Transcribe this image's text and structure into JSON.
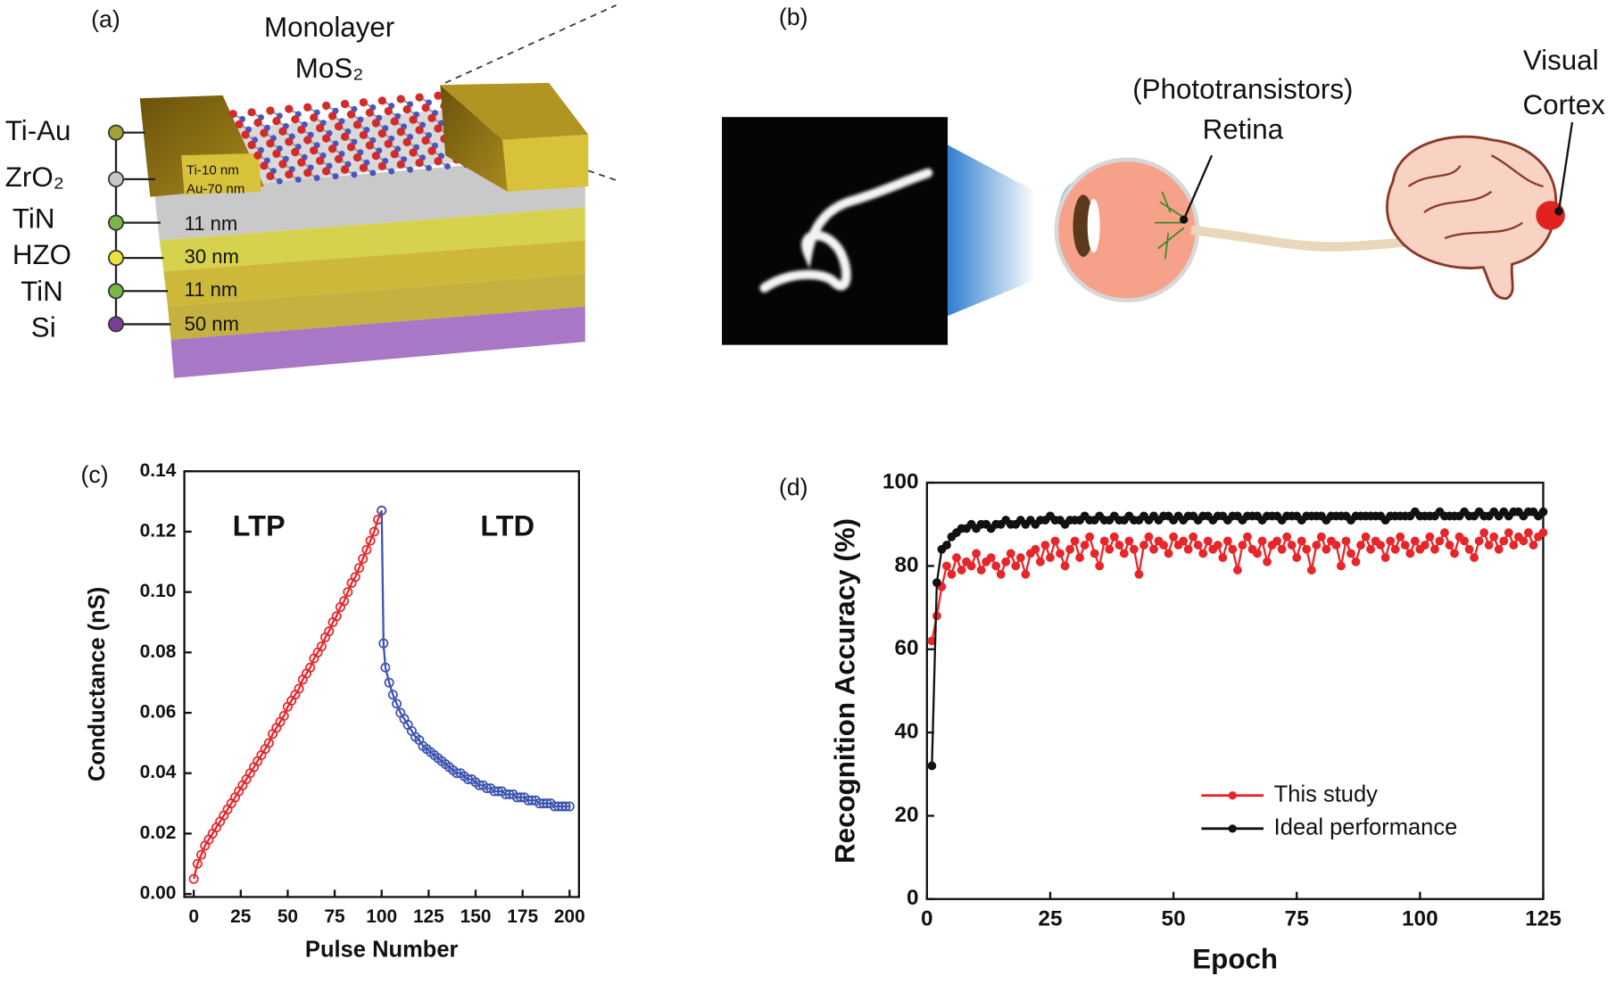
{
  "panel_a": {
    "label": "(a)",
    "title_lines": [
      "Monolayer",
      "MoS₂"
    ],
    "layers": [
      "Ti-Au",
      "ZrO₂",
      "TiN",
      "HZO",
      "TiN",
      "Si"
    ],
    "thicknesses": [
      "Ti-10 nm",
      "Au-70 nm",
      "11 nm",
      "30 nm",
      "11 nm",
      "50 nm"
    ]
  },
  "panel_b": {
    "label": "(b)",
    "retina_lines": [
      "(Phototransistors)",
      "Retina"
    ],
    "cortex_lines": [
      "Visual",
      "Cortex"
    ]
  },
  "chart_data": [
    {
      "type": "line",
      "label": "(c)",
      "xlabel": "Pulse Number",
      "ylabel": "Conductance (nS)",
      "xlim": [
        -5,
        205
      ],
      "xticks": [
        0,
        25,
        50,
        75,
        100,
        125,
        150,
        175,
        200
      ],
      "ylim": [
        -0.001,
        0.14
      ],
      "yticks": [
        {
          "value": 0,
          "label": "0.00"
        },
        0.02,
        0.04,
        0.06,
        0.08,
        {
          "value": 0.1,
          "label": "0.10"
        },
        0.12,
        0.14
      ],
      "marker": "open",
      "annotations": [
        {
          "text": "LTP",
          "color": "#e8262a"
        },
        {
          "text": "LTD",
          "color": "#3d55b0"
        }
      ],
      "series": [
        {
          "color": "#e8262a",
          "x": [
            0,
            2,
            4,
            6,
            8,
            10,
            12,
            14,
            16,
            18,
            20,
            22,
            24,
            26,
            28,
            30,
            32,
            34,
            36,
            38,
            40,
            42,
            44,
            46,
            48,
            50,
            52,
            54,
            56,
            58,
            60,
            62,
            64,
            66,
            68,
            70,
            72,
            74,
            76,
            78,
            80,
            82,
            84,
            86,
            88,
            90,
            92,
            94,
            96,
            98,
            100
          ],
          "values": [
            0.005,
            0.01,
            0.013,
            0.016,
            0.018,
            0.02,
            0.022,
            0.024,
            0.026,
            0.028,
            0.03,
            0.032,
            0.034,
            0.036,
            0.038,
            0.04,
            0.042,
            0.044,
            0.046,
            0.048,
            0.05,
            0.053,
            0.055,
            0.057,
            0.059,
            0.062,
            0.064,
            0.066,
            0.068,
            0.071,
            0.073,
            0.075,
            0.078,
            0.08,
            0.082,
            0.085,
            0.087,
            0.09,
            0.092,
            0.095,
            0.097,
            0.1,
            0.103,
            0.105,
            0.108,
            0.111,
            0.114,
            0.117,
            0.12,
            0.124,
            0.127
          ]
        },
        {
          "color": "#3d55b0",
          "x": [
            100,
            101,
            102,
            104,
            106,
            108,
            110,
            112,
            114,
            116,
            118,
            120,
            122,
            124,
            126,
            128,
            130,
            132,
            134,
            136,
            138,
            140,
            142,
            144,
            146,
            148,
            150,
            152,
            154,
            156,
            158,
            160,
            162,
            164,
            166,
            168,
            170,
            172,
            174,
            176,
            178,
            180,
            182,
            184,
            186,
            188,
            190,
            192,
            194,
            196,
            198,
            200
          ],
          "values": [
            0.127,
            0.083,
            0.075,
            0.07,
            0.066,
            0.063,
            0.06,
            0.058,
            0.056,
            0.054,
            0.052,
            0.051,
            0.049,
            0.048,
            0.047,
            0.046,
            0.045,
            0.044,
            0.043,
            0.042,
            0.041,
            0.04,
            0.04,
            0.039,
            0.038,
            0.038,
            0.037,
            0.036,
            0.036,
            0.035,
            0.035,
            0.034,
            0.034,
            0.034,
            0.033,
            0.033,
            0.033,
            0.032,
            0.032,
            0.032,
            0.031,
            0.031,
            0.031,
            0.03,
            0.03,
            0.03,
            0.03,
            0.029,
            0.029,
            0.029,
            0.029,
            0.029
          ]
        }
      ]
    },
    {
      "type": "line",
      "label": "(d)",
      "xlabel": "Epoch",
      "ylabel": "Recognition Accuracy (%)",
      "xlim": [
        0,
        125
      ],
      "xticks": [
        0,
        25,
        50,
        75,
        100,
        125
      ],
      "ylim": [
        0,
        100
      ],
      "yticks": [
        0,
        20,
        40,
        60,
        80,
        100
      ],
      "marker": "filled",
      "legend": "lower right",
      "x": [
        1,
        2,
        3,
        4,
        5,
        6,
        7,
        8,
        9,
        10,
        11,
        12,
        13,
        14,
        15,
        16,
        17,
        18,
        19,
        20,
        21,
        22,
        23,
        24,
        25,
        26,
        27,
        28,
        29,
        30,
        31,
        32,
        33,
        34,
        35,
        36,
        37,
        38,
        39,
        40,
        41,
        42,
        43,
        44,
        45,
        46,
        47,
        48,
        49,
        50,
        51,
        52,
        53,
        54,
        55,
        56,
        57,
        58,
        59,
        60,
        61,
        62,
        63,
        64,
        65,
        66,
        67,
        68,
        69,
        70,
        71,
        72,
        73,
        74,
        75,
        76,
        77,
        78,
        79,
        80,
        81,
        82,
        83,
        84,
        85,
        86,
        87,
        88,
        89,
        90,
        91,
        92,
        93,
        94,
        95,
        96,
        97,
        98,
        99,
        100,
        101,
        102,
        103,
        104,
        105,
        106,
        107,
        108,
        109,
        110,
        111,
        112,
        113,
        114,
        115,
        116,
        117,
        118,
        119,
        120,
        121,
        122,
        123,
        124,
        125
      ],
      "series": [
        {
          "name": "This study",
          "color": "#e8262a",
          "values": [
            62,
            68,
            75,
            80,
            78,
            82,
            79,
            81,
            80,
            83,
            79,
            81,
            82,
            80,
            78,
            81,
            83,
            80,
            82,
            78,
            83,
            84,
            81,
            85,
            82,
            86,
            83,
            80,
            84,
            86,
            82,
            85,
            87,
            83,
            80,
            86,
            84,
            87,
            85,
            83,
            86,
            84,
            78,
            85,
            87,
            84,
            86,
            85,
            83,
            87,
            85,
            86,
            84,
            87,
            85,
            83,
            86,
            84,
            85,
            82,
            86,
            84,
            79,
            85,
            87,
            84,
            83,
            86,
            81,
            85,
            86,
            84,
            87,
            85,
            82,
            86,
            84,
            79,
            85,
            87,
            84,
            86,
            85,
            80,
            86,
            83,
            81,
            85,
            87,
            84,
            86,
            85,
            82,
            86,
            84,
            87,
            85,
            83,
            86,
            84,
            85,
            87,
            84,
            86,
            88,
            85,
            83,
            87,
            86,
            84,
            82,
            86,
            88,
            85,
            87,
            84,
            86,
            88,
            85,
            87,
            86,
            88,
            85,
            87,
            88
          ]
        },
        {
          "name": "Ideal performance",
          "color": "#111111",
          "values": [
            32,
            76,
            84,
            85,
            87,
            88,
            89,
            89,
            90,
            89,
            90,
            90,
            89,
            90,
            90,
            91,
            90,
            90,
            91,
            90,
            91,
            90,
            91,
            91,
            92,
            91,
            91,
            90,
            91,
            91,
            91,
            92,
            91,
            91,
            92,
            91,
            91,
            92,
            91,
            91,
            92,
            91,
            91,
            92,
            91,
            92,
            91,
            92,
            92,
            91,
            92,
            91,
            92,
            92,
            91,
            92,
            92,
            91,
            92,
            92,
            91,
            92,
            92,
            91,
            92,
            92,
            92,
            91,
            92,
            92,
            92,
            91,
            92,
            92,
            92,
            91,
            92,
            92,
            92,
            92,
            91,
            92,
            92,
            92,
            92,
            91,
            92,
            92,
            92,
            92,
            92,
            92,
            91,
            92,
            92,
            92,
            92,
            92,
            93,
            92,
            92,
            92,
            92,
            93,
            92,
            92,
            92,
            92,
            93,
            92,
            92,
            93,
            92,
            92,
            93,
            92,
            93,
            92,
            93,
            93,
            92,
            93,
            93,
            92,
            93
          ]
        }
      ]
    }
  ]
}
